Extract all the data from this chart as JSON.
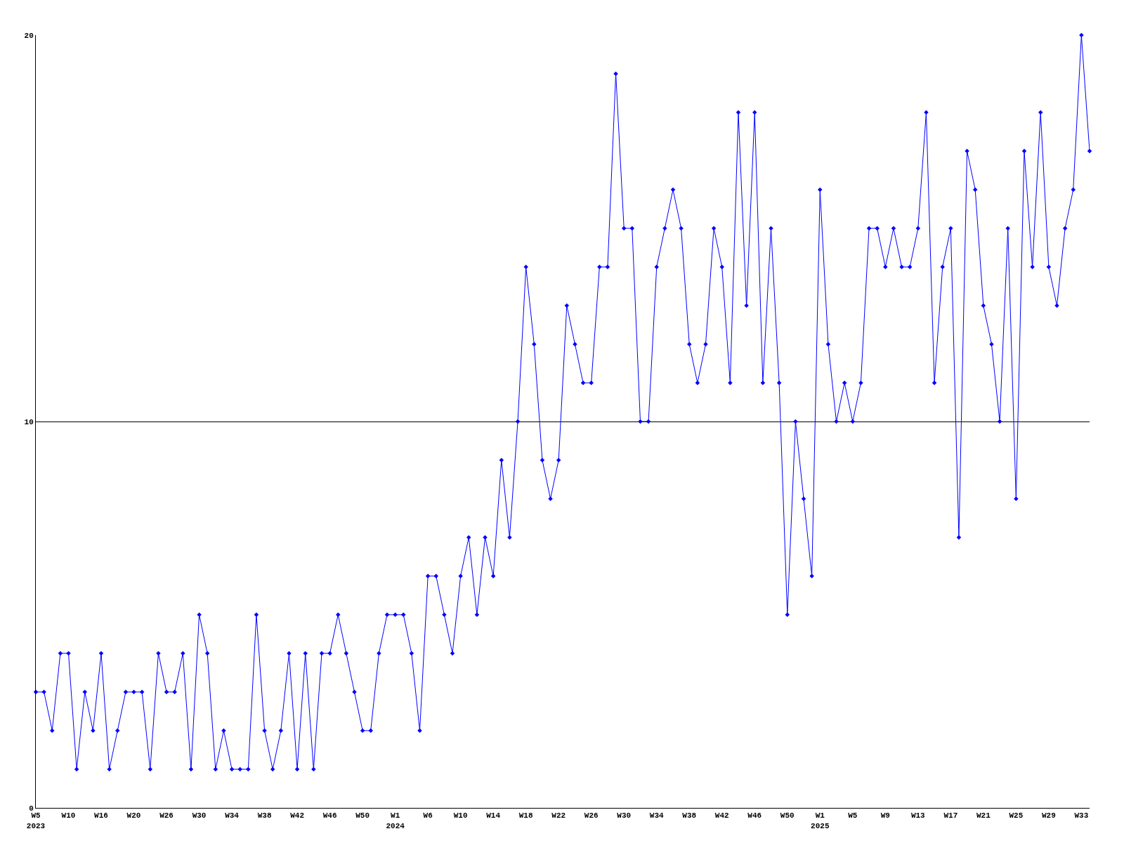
{
  "chart_data": {
    "type": "line",
    "categories": [
      "W5\n2023",
      null,
      null,
      null,
      "W10",
      null,
      null,
      null,
      "W16",
      null,
      null,
      null,
      "W20",
      null,
      null,
      null,
      "W26",
      null,
      null,
      null,
      "W30",
      null,
      null,
      null,
      "W34",
      null,
      null,
      null,
      "W38",
      null,
      null,
      null,
      "W42",
      null,
      null,
      null,
      "W46",
      null,
      null,
      null,
      "W50",
      null,
      null,
      null,
      "W1\n2024",
      null,
      null,
      null,
      "W6",
      null,
      null,
      null,
      "W10",
      null,
      null,
      null,
      "W14",
      null,
      null,
      null,
      "W18",
      null,
      null,
      null,
      "W22",
      null,
      null,
      null,
      "W26",
      null,
      null,
      null,
      "W30",
      null,
      null,
      null,
      "W34",
      null,
      null,
      null,
      "W38",
      null,
      null,
      null,
      "W42",
      null,
      null,
      null,
      "W46",
      null,
      null,
      null,
      "W50",
      null,
      null,
      null,
      "W1\n2025",
      null,
      null,
      null,
      "W5",
      null,
      null,
      null,
      "W9",
      null,
      null,
      null,
      "W13",
      null,
      null,
      null,
      "W17",
      null,
      null,
      null,
      "W21",
      null,
      null,
      null,
      "W25",
      null,
      null,
      null,
      "W29",
      null,
      null,
      null,
      "W33",
      null
    ],
    "series": [
      {
        "color": "#0000ff",
        "values": [
          3,
          3,
          2,
          4,
          4,
          1,
          3,
          2,
          4,
          1,
          2,
          3,
          3,
          3,
          1,
          4,
          3,
          3,
          4,
          1,
          5,
          4,
          1,
          2,
          1,
          1,
          1,
          5,
          2,
          1,
          2,
          4,
          1,
          4,
          1,
          4,
          4,
          5,
          4,
          3,
          2,
          2,
          4,
          5,
          5,
          5,
          4,
          2,
          6,
          6,
          5,
          4,
          6,
          7,
          5,
          7,
          6,
          9,
          7,
          10,
          14,
          12,
          9,
          8,
          9,
          13,
          12,
          11,
          11,
          14,
          14,
          19,
          15,
          15,
          10,
          10,
          14,
          15,
          16,
          15,
          12,
          11,
          12,
          15,
          14,
          11,
          18,
          13,
          18,
          11,
          15,
          11,
          5,
          10,
          8,
          6,
          16,
          12,
          10,
          11,
          10,
          11,
          15,
          15,
          14,
          15,
          14,
          14,
          15,
          18,
          11,
          14,
          15,
          7,
          17,
          16,
          13,
          12,
          10,
          15,
          8,
          17,
          14,
          18,
          14,
          13,
          15,
          16,
          20,
          17
        ]
      }
    ],
    "ylim": [
      0,
      20
    ],
    "yticks": [
      0,
      10,
      20
    ],
    "grid": "y",
    "legend": false,
    "marker": "diamond",
    "line_style": "solid"
  }
}
